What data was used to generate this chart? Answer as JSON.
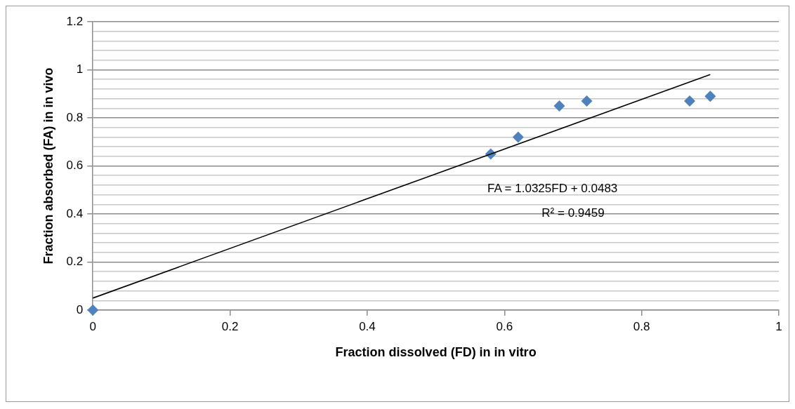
{
  "chart_data": {
    "type": "scatter",
    "xlabel": "Fraction dissolved (FD) in in vitro",
    "ylabel": "Fraction absorbed (FA) in in vivo",
    "series": [
      {
        "color": "#4f81bd",
        "marker": "diamond",
        "x": [
          0,
          0.58,
          0.62,
          0.68,
          0.72,
          0.87,
          0.9
        ],
        "values": [
          0,
          0.65,
          0.72,
          0.85,
          0.87,
          0.87,
          0.89
        ]
      },
      {
        "type": "line",
        "color": "#000000",
        "marker": "none",
        "line_style": "solid",
        "x": [
          0,
          0.9
        ],
        "values": [
          0.05,
          0.98
        ]
      }
    ],
    "xlim": [
      0,
      1
    ],
    "xticks": [
      0,
      0.2,
      0.4,
      0.6,
      0.8,
      1
    ],
    "ylim": [
      0,
      1.2
    ],
    "yticks": [
      0,
      {
        "value": 0.04,
        "label": null
      },
      {
        "value": 0.08,
        "label": null
      },
      {
        "value": 0.12,
        "label": null
      },
      {
        "value": 0.16,
        "label": null
      },
      0.2,
      {
        "value": 0.24,
        "label": null
      },
      {
        "value": 0.28,
        "label": null
      },
      {
        "value": 0.32,
        "label": null
      },
      {
        "value": 0.36,
        "label": null
      },
      0.4,
      {
        "value": 0.44,
        "label": null
      },
      {
        "value": 0.48,
        "label": null
      },
      {
        "value": 0.52,
        "label": null
      },
      {
        "value": 0.56,
        "label": null
      },
      0.6,
      {
        "value": 0.64,
        "label": null
      },
      {
        "value": 0.68,
        "label": null
      },
      {
        "value": 0.72,
        "label": null
      },
      {
        "value": 0.76,
        "label": null
      },
      0.8,
      {
        "value": 0.84,
        "label": null
      },
      {
        "value": 0.88,
        "label": null
      },
      {
        "value": 0.92,
        "label": null
      },
      {
        "value": 0.96,
        "label": null
      },
      1,
      {
        "value": 1.04,
        "label": null
      },
      {
        "value": 1.08,
        "label": null
      },
      {
        "value": 1.12,
        "label": null
      },
      {
        "value": 1.16,
        "label": null
      },
      1.2
    ],
    "grid": "y",
    "legend": false,
    "annotations": [
      "FA = 1.0325FD + 0.0483",
      "R² = 0.9459"
    ]
  }
}
